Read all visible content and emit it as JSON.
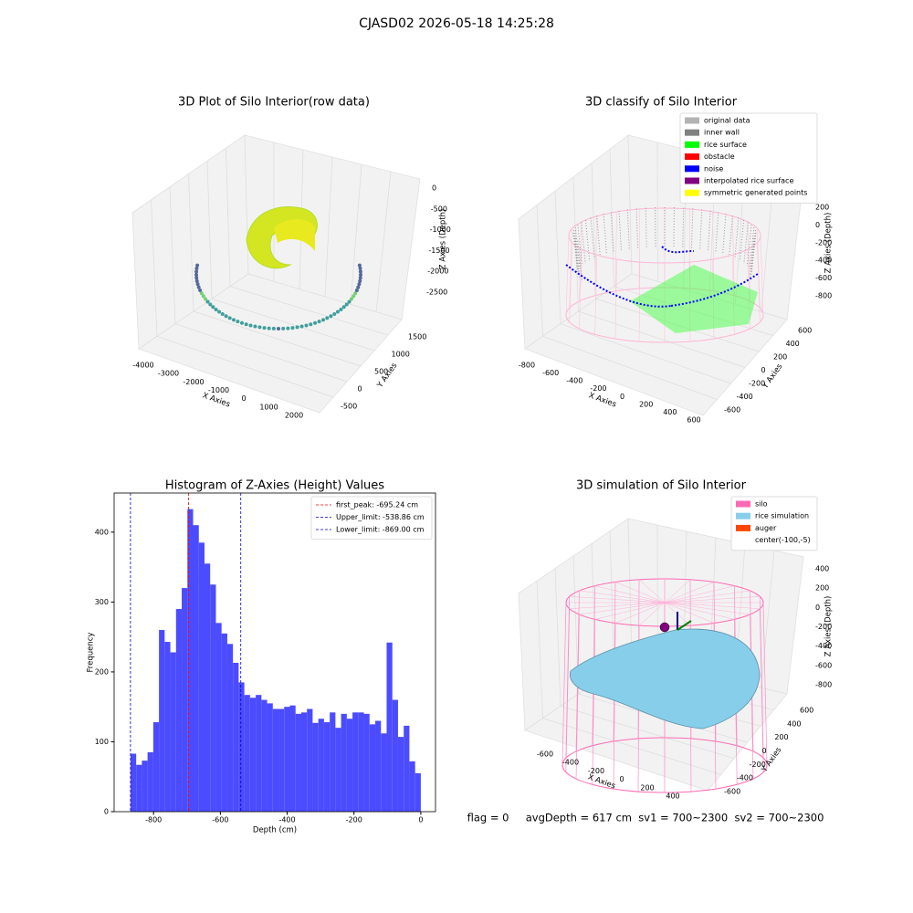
{
  "title": "CJASD02 2026-05-18 14:25:28",
  "footer": "flag = 0     avgDepth = 617 cm  sv1 = 700~2300  sv2 = 700~2300",
  "chart_data": [
    {
      "type": "scatter3d",
      "title": "3D Plot of Silo Interior(row data)",
      "xlabel": "X Axies",
      "ylabel": "Y Axies",
      "zlabel": "Z Axies (Depth)",
      "xticks": [
        -4000,
        -3000,
        -2000,
        -1000,
        0,
        1000,
        2000
      ],
      "yticks": [
        -500,
        0,
        500,
        1000,
        1500
      ],
      "zticks": [
        0,
        -500,
        -1000,
        -1500,
        -2000,
        -2500
      ]
    },
    {
      "type": "classify3d",
      "title": "3D classify of Silo Interior",
      "xlabel": "X Axies",
      "ylabel": "Y Axies",
      "zlabel": "Z Axies (Depth)",
      "xticks": [
        -800,
        -600,
        -400,
        -200,
        0,
        200,
        400,
        600
      ],
      "yticks": [
        -600,
        -400,
        -200,
        0,
        200,
        400,
        600
      ],
      "zticks": [
        200,
        0,
        -200,
        -400,
        -600,
        -800
      ],
      "legend": [
        {
          "name": "original data",
          "color": "#b3b3b3"
        },
        {
          "name": "inner wall",
          "color": "#808080"
        },
        {
          "name": "rice surface",
          "color": "#00ff00"
        },
        {
          "name": "obstacle",
          "color": "#ff0000"
        },
        {
          "name": "noise",
          "color": "#0000ff"
        },
        {
          "name": "interpolated rice surface",
          "color": "#800080"
        },
        {
          "name": "symmetric generated points",
          "color": "#ffff00"
        }
      ]
    },
    {
      "type": "histogram",
      "title": "Histogram of Z-Axies (Height) Values",
      "xlabel": "Depth (cm)",
      "ylabel": "Frequency",
      "color": "#4b4bff",
      "bins": [
        -869.0,
        -852.0,
        -834.9,
        -817.9,
        -800.8,
        -783.8,
        -766.8,
        -749.7,
        -732.7,
        -715.6,
        -698.6,
        -681.6,
        -664.5,
        -647.5,
        -630.5,
        -613.4,
        -596.4,
        -579.3,
        -562.3,
        -545.3,
        -528.2,
        -511.2,
        -494.1,
        -477.1,
        -460.1,
        -443.0,
        -426.0,
        -409.0,
        -391.9,
        -374.9,
        -357.8,
        -340.8,
        -323.8,
        -306.7,
        -289.7,
        -272.6,
        -255.6,
        -238.6,
        -221.5,
        -204.5,
        -187.5,
        -170.4,
        -153.4,
        -136.3,
        -119.3,
        -102.3,
        -85.2,
        -68.2,
        -51.1,
        -34.1,
        -17.0,
        0
      ],
      "values": [
        83,
        67,
        73,
        85,
        128,
        260,
        243,
        228,
        290,
        320,
        433,
        410,
        385,
        355,
        325,
        270,
        255,
        240,
        213,
        185,
        167,
        163,
        167,
        160,
        155,
        147,
        147,
        150,
        152,
        140,
        142,
        147,
        127,
        133,
        128,
        142,
        120,
        140,
        133,
        142,
        142,
        140,
        125,
        130,
        112,
        242,
        160,
        107,
        123,
        72,
        55
      ],
      "xlim": [
        -918,
        44
      ],
      "ylim": [
        0,
        456
      ],
      "xticks": [
        -800,
        -600,
        -400,
        -200,
        0
      ],
      "yticks": [
        0,
        100,
        200,
        300,
        400
      ],
      "vlines": [
        {
          "value": -695.24,
          "label": "first_peak: -695.24 cm",
          "color": "#ff0000"
        },
        {
          "value": -538.86,
          "label": "Upper_limit: -538.86 cm",
          "color": "#0000cc"
        },
        {
          "value": -869.0,
          "label": "Lower_limit: -869.00 cm",
          "color": "#0000cc"
        }
      ],
      "legend_position": "upper right"
    },
    {
      "type": "surface3d",
      "title": "3D simulation of Silo Interior",
      "xlabel": "X Axies",
      "ylabel": "Y Axies",
      "zlabel": "Z Axies (Depth)",
      "xticks": [
        -600,
        -400,
        -200,
        0,
        200,
        400
      ],
      "yticks": [
        -600,
        -400,
        -200,
        0,
        200,
        400,
        600
      ],
      "zticks": [
        400,
        200,
        0,
        -200,
        -400,
        -600,
        -800
      ],
      "legend": [
        {
          "name": "silo",
          "color": "#ff69b4"
        },
        {
          "name": "rice simulation",
          "color": "#87ceeb"
        },
        {
          "name": "auger",
          "color": "#ff4500"
        },
        {
          "name": "center(-100,-5)",
          "color": "#ffffff"
        }
      ]
    }
  ]
}
